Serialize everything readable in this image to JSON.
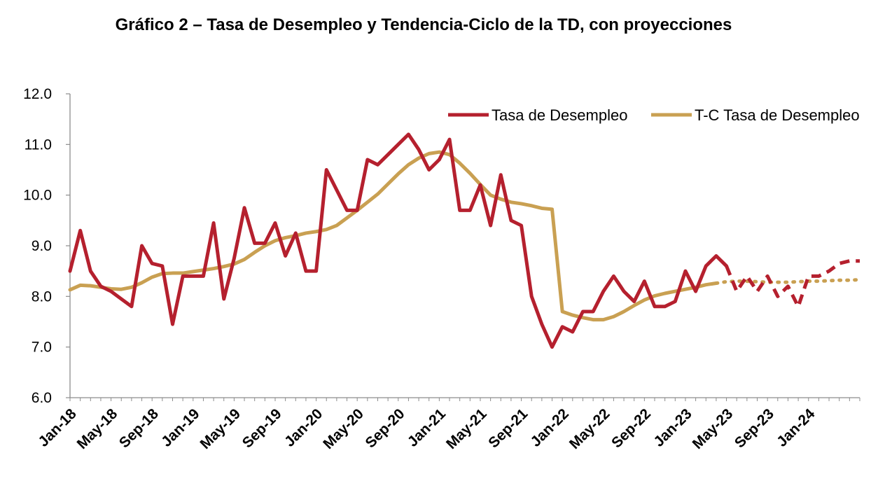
{
  "chart_data": {
    "type": "line",
    "title": "Gráfico 2 – Tasa de Desempleo y Tendencia-Ciclo de la TD, con proyecciones",
    "xlabel": "",
    "ylabel": "",
    "ylim": [
      6.0,
      12.0
    ],
    "y_ticks": [
      "6.0",
      "7.0",
      "8.0",
      "9.0",
      "10.0",
      "11.0",
      "12.0"
    ],
    "x_tick_labels": [
      "Jan-18",
      "May-18",
      "Sep-18",
      "Jan-19",
      "May-19",
      "Sep-19",
      "Jan-20",
      "May-20",
      "Sep-20",
      "Jan-21",
      "May-21",
      "Sep-21",
      "Jan-22",
      "May-22",
      "Sep-22",
      "Jan-23",
      "May-23",
      "Sep-23",
      "Jan-24"
    ],
    "x_tick_every": 4,
    "x_start": "Jan-18",
    "n_points": 78,
    "legend_position": "top-right",
    "grid": false,
    "series": [
      {
        "name": "Tasa de Desempleo",
        "color": "#b5202e",
        "observed_count": 65,
        "projection_style": "dashed",
        "values": [
          8.5,
          9.3,
          8.5,
          8.2,
          8.1,
          7.95,
          7.8,
          9.0,
          8.65,
          8.6,
          7.45,
          8.4,
          8.4,
          8.4,
          9.45,
          7.95,
          8.75,
          9.75,
          9.05,
          9.05,
          9.45,
          8.8,
          9.25,
          8.5,
          8.5,
          10.5,
          10.1,
          9.7,
          9.7,
          10.7,
          10.6,
          10.8,
          11.0,
          11.2,
          10.9,
          10.5,
          10.7,
          11.1,
          9.7,
          9.7,
          10.2,
          9.4,
          10.4,
          9.5,
          9.4,
          8.0,
          7.45,
          7.0,
          7.4,
          7.3,
          7.7,
          7.7,
          8.1,
          8.4,
          8.1,
          7.9,
          8.3,
          7.8,
          7.8,
          7.9,
          8.5,
          8.1,
          8.6,
          8.8,
          8.6,
          8.1,
          8.4,
          8.1,
          8.4,
          8.0,
          8.2,
          7.8,
          8.4,
          8.4,
          8.5,
          8.65,
          8.7,
          8.7
        ]
      },
      {
        "name": "T-C Tasa de Desempleo",
        "color": "#c9a052",
        "observed_count": 64,
        "projection_style": "dotted",
        "values": [
          8.13,
          8.22,
          8.21,
          8.18,
          8.15,
          8.14,
          8.18,
          8.27,
          8.38,
          8.45,
          8.46,
          8.46,
          8.49,
          8.52,
          8.55,
          8.59,
          8.64,
          8.73,
          8.87,
          9.0,
          9.1,
          9.16,
          9.2,
          9.25,
          9.28,
          9.32,
          9.4,
          9.55,
          9.7,
          9.86,
          10.02,
          10.22,
          10.42,
          10.6,
          10.73,
          10.82,
          10.85,
          10.8,
          10.63,
          10.43,
          10.21,
          10.0,
          9.92,
          9.86,
          9.83,
          9.79,
          9.74,
          9.72,
          7.7,
          7.63,
          7.58,
          7.54,
          7.54,
          7.6,
          7.7,
          7.82,
          7.93,
          8.01,
          8.06,
          8.1,
          8.14,
          8.18,
          8.23,
          8.26,
          8.29,
          8.3,
          8.3,
          8.29,
          8.28,
          8.28,
          8.28,
          8.29,
          8.3,
          8.3,
          8.31,
          8.32,
          8.32,
          8.33
        ]
      }
    ]
  }
}
